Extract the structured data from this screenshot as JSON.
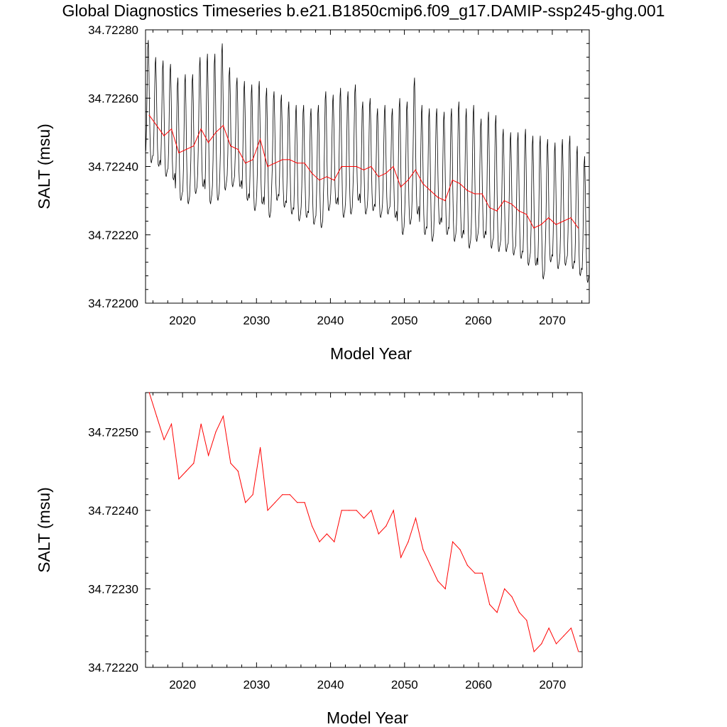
{
  "title": "Global Diagnostics Timeseries b.e21.B1850cmip6.f09_g17.DAMIP-ssp245-ghg.001",
  "colors": {
    "monthly": "#000000",
    "annual": "#ff0000",
    "axes": "#000000"
  },
  "chart_data": [
    {
      "type": "line",
      "xlabel": "Model Year",
      "ylabel": "SALT (msu)",
      "xlim": [
        2015,
        2075
      ],
      "ylim": [
        34.722,
        34.7228
      ],
      "xticks": [
        "2020",
        "2030",
        "2040",
        "2050",
        "2060",
        "2070"
      ],
      "yticks": [
        "34.72200",
        "34.72220",
        "34.72240",
        "34.72260",
        "34.72280"
      ],
      "series": [
        {
          "role": "monthly",
          "color": "#000000",
          "description": "monthly values with seasonal cycle",
          "annual_max": [
            34.72277,
            34.72272,
            34.72271,
            34.7227,
            34.72266,
            34.72267,
            34.72267,
            34.72272,
            34.72273,
            34.72273,
            34.72276,
            34.72269,
            34.72266,
            34.72265,
            34.72264,
            34.72265,
            34.72263,
            34.72262,
            34.72261,
            34.72259,
            34.72258,
            34.72258,
            34.72257,
            34.72258,
            34.72262,
            34.72261,
            34.72263,
            34.72262,
            34.72264,
            34.72259,
            34.7226,
            34.72257,
            34.72258,
            34.72257,
            34.7226,
            34.72259,
            34.72266,
            34.72258,
            34.72257,
            34.72257,
            34.72256,
            34.72257,
            34.72259,
            34.72257,
            34.72258,
            34.72254,
            34.72256,
            34.72255,
            34.72251,
            34.7225,
            34.7225,
            34.72251,
            34.72249,
            34.72249,
            34.72248,
            34.72247,
            34.72248,
            34.72249,
            34.72246,
            34.72243
          ],
          "annual_min": [
            34.72241,
            34.7224,
            34.72237,
            34.72236,
            34.7223,
            34.72229,
            34.72232,
            34.72234,
            34.72229,
            34.7223,
            34.72233,
            34.72234,
            34.72234,
            34.7223,
            34.72227,
            34.72229,
            34.72225,
            34.7223,
            34.72228,
            34.72226,
            34.72224,
            34.72225,
            34.72223,
            34.72222,
            34.72227,
            34.72229,
            34.72225,
            34.72226,
            34.7223,
            34.72226,
            34.72227,
            34.72225,
            34.72226,
            34.72225,
            34.7222,
            34.72223,
            34.72226,
            34.7222,
            34.72218,
            34.72223,
            34.7222,
            34.72218,
            34.72219,
            34.72216,
            34.72218,
            34.72219,
            34.72216,
            34.72215,
            34.72215,
            34.72214,
            34.72213,
            34.72211,
            34.72211,
            34.72207,
            34.72212,
            34.7221,
            34.72211,
            34.7221,
            34.72208,
            34.72206
          ]
        },
        {
          "role": "annual",
          "color": "#ff0000",
          "x": [
            2015.5,
            2016.5,
            2017.5,
            2018.5,
            2019.5,
            2020.5,
            2021.5,
            2022.5,
            2023.5,
            2024.5,
            2025.5,
            2026.5,
            2027.5,
            2028.5,
            2029.5,
            2030.5,
            2031.5,
            2032.5,
            2033.5,
            2034.5,
            2035.5,
            2036.5,
            2037.5,
            2038.5,
            2039.5,
            2040.5,
            2041.5,
            2042.5,
            2043.5,
            2044.5,
            2045.5,
            2046.5,
            2047.5,
            2048.5,
            2049.5,
            2050.5,
            2051.5,
            2052.5,
            2053.5,
            2054.5,
            2055.5,
            2056.5,
            2057.5,
            2058.5,
            2059.5,
            2060.5,
            2061.5,
            2062.5,
            2063.5,
            2064.5,
            2065.5,
            2066.5,
            2067.5,
            2068.5,
            2069.5,
            2070.5,
            2071.5,
            2072.5,
            2073.5
          ],
          "values": [
            34.72255,
            34.72252,
            34.72249,
            34.72251,
            34.72244,
            34.72245,
            34.72246,
            34.72251,
            34.72247,
            34.7225,
            34.72252,
            34.72246,
            34.72245,
            34.72241,
            34.72242,
            34.72248,
            34.7224,
            34.72241,
            34.72242,
            34.72242,
            34.72241,
            34.72241,
            34.72238,
            34.72236,
            34.72237,
            34.72236,
            34.7224,
            34.7224,
            34.7224,
            34.72239,
            34.7224,
            34.72237,
            34.72238,
            34.7224,
            34.72234,
            34.72236,
            34.72239,
            34.72235,
            34.72233,
            34.72231,
            34.7223,
            34.72236,
            34.72235,
            34.72233,
            34.72232,
            34.72232,
            34.72228,
            34.72227,
            34.7223,
            34.72229,
            34.72227,
            34.72226,
            34.72222,
            34.72223,
            34.72225,
            34.72223,
            34.72224,
            34.72225,
            34.72222
          ]
        }
      ]
    },
    {
      "type": "line",
      "xlabel": "Model Year",
      "ylabel": "SALT (msu)",
      "xlim": [
        2015,
        2074
      ],
      "ylim": [
        34.7222,
        34.72255
      ],
      "xticks": [
        "2020",
        "2030",
        "2040",
        "2050",
        "2060",
        "2070"
      ],
      "yticks": [
        "34.72220",
        "34.72230",
        "34.72240",
        "34.72250"
      ],
      "series": [
        {
          "role": "annual",
          "color": "#ff0000",
          "x": [
            2015.5,
            2016.5,
            2017.5,
            2018.5,
            2019.5,
            2020.5,
            2021.5,
            2022.5,
            2023.5,
            2024.5,
            2025.5,
            2026.5,
            2027.5,
            2028.5,
            2029.5,
            2030.5,
            2031.5,
            2032.5,
            2033.5,
            2034.5,
            2035.5,
            2036.5,
            2037.5,
            2038.5,
            2039.5,
            2040.5,
            2041.5,
            2042.5,
            2043.5,
            2044.5,
            2045.5,
            2046.5,
            2047.5,
            2048.5,
            2049.5,
            2050.5,
            2051.5,
            2052.5,
            2053.5,
            2054.5,
            2055.5,
            2056.5,
            2057.5,
            2058.5,
            2059.5,
            2060.5,
            2061.5,
            2062.5,
            2063.5,
            2064.5,
            2065.5,
            2066.5,
            2067.5,
            2068.5,
            2069.5,
            2070.5,
            2071.5,
            2072.5,
            2073.5
          ],
          "values": [
            34.72255,
            34.72252,
            34.72249,
            34.72251,
            34.72244,
            34.72245,
            34.72246,
            34.72251,
            34.72247,
            34.7225,
            34.72252,
            34.72246,
            34.72245,
            34.72241,
            34.72242,
            34.72248,
            34.7224,
            34.72241,
            34.72242,
            34.72242,
            34.72241,
            34.72241,
            34.72238,
            34.72236,
            34.72237,
            34.72236,
            34.7224,
            34.7224,
            34.7224,
            34.72239,
            34.7224,
            34.72237,
            34.72238,
            34.7224,
            34.72234,
            34.72236,
            34.72239,
            34.72235,
            34.72233,
            34.72231,
            34.7223,
            34.72236,
            34.72235,
            34.72233,
            34.72232,
            34.72232,
            34.72228,
            34.72227,
            34.7223,
            34.72229,
            34.72227,
            34.72226,
            34.72222,
            34.72223,
            34.72225,
            34.72223,
            34.72224,
            34.72225,
            34.72222
          ]
        }
      ]
    }
  ]
}
